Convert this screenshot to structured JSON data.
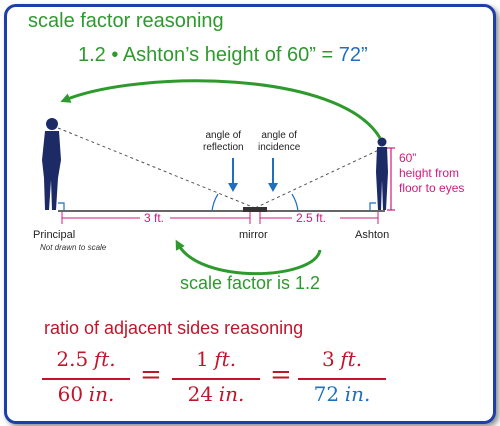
{
  "heading_scale": "scale factor reasoning",
  "equation_scale": {
    "left": "1.2 • Ashton’s height of 60” = ",
    "result": "72”"
  },
  "labels": {
    "angle_reflection": [
      "angle of",
      "reflection"
    ],
    "angle_incidence": [
      "angle of",
      "incidence"
    ],
    "height_value": "60”",
    "height_text": [
      "height from",
      "floor to eyes"
    ],
    "principal": "Principal",
    "not_to_scale": "Not drawn to scale",
    "mirror": "mirror",
    "ashton": "Ashton",
    "dist_left": "3 ft.",
    "dist_right": "2.5 ft."
  },
  "scale_factor_caption": "scale factor is 1.2",
  "heading_ratio": "ratio of adjacent sides reasoning",
  "fractions": [
    {
      "num_value": "2.5",
      "num_unit": "ft.",
      "den_value": "60",
      "den_unit": "in."
    },
    {
      "num_value": "1",
      "num_unit": "ft.",
      "den_value": "24",
      "den_unit": "in."
    },
    {
      "num_value": "3",
      "num_unit": "ft.",
      "den_value": "72",
      "den_unit": "in."
    }
  ],
  "equals": "=",
  "colors": {
    "green": "#2e9a2e",
    "red": "#c0162c",
    "blue": "#1f6fbf",
    "magenta": "#d1197c",
    "frame": "#1e3ea8",
    "figure_navy": "#1c2a66"
  }
}
